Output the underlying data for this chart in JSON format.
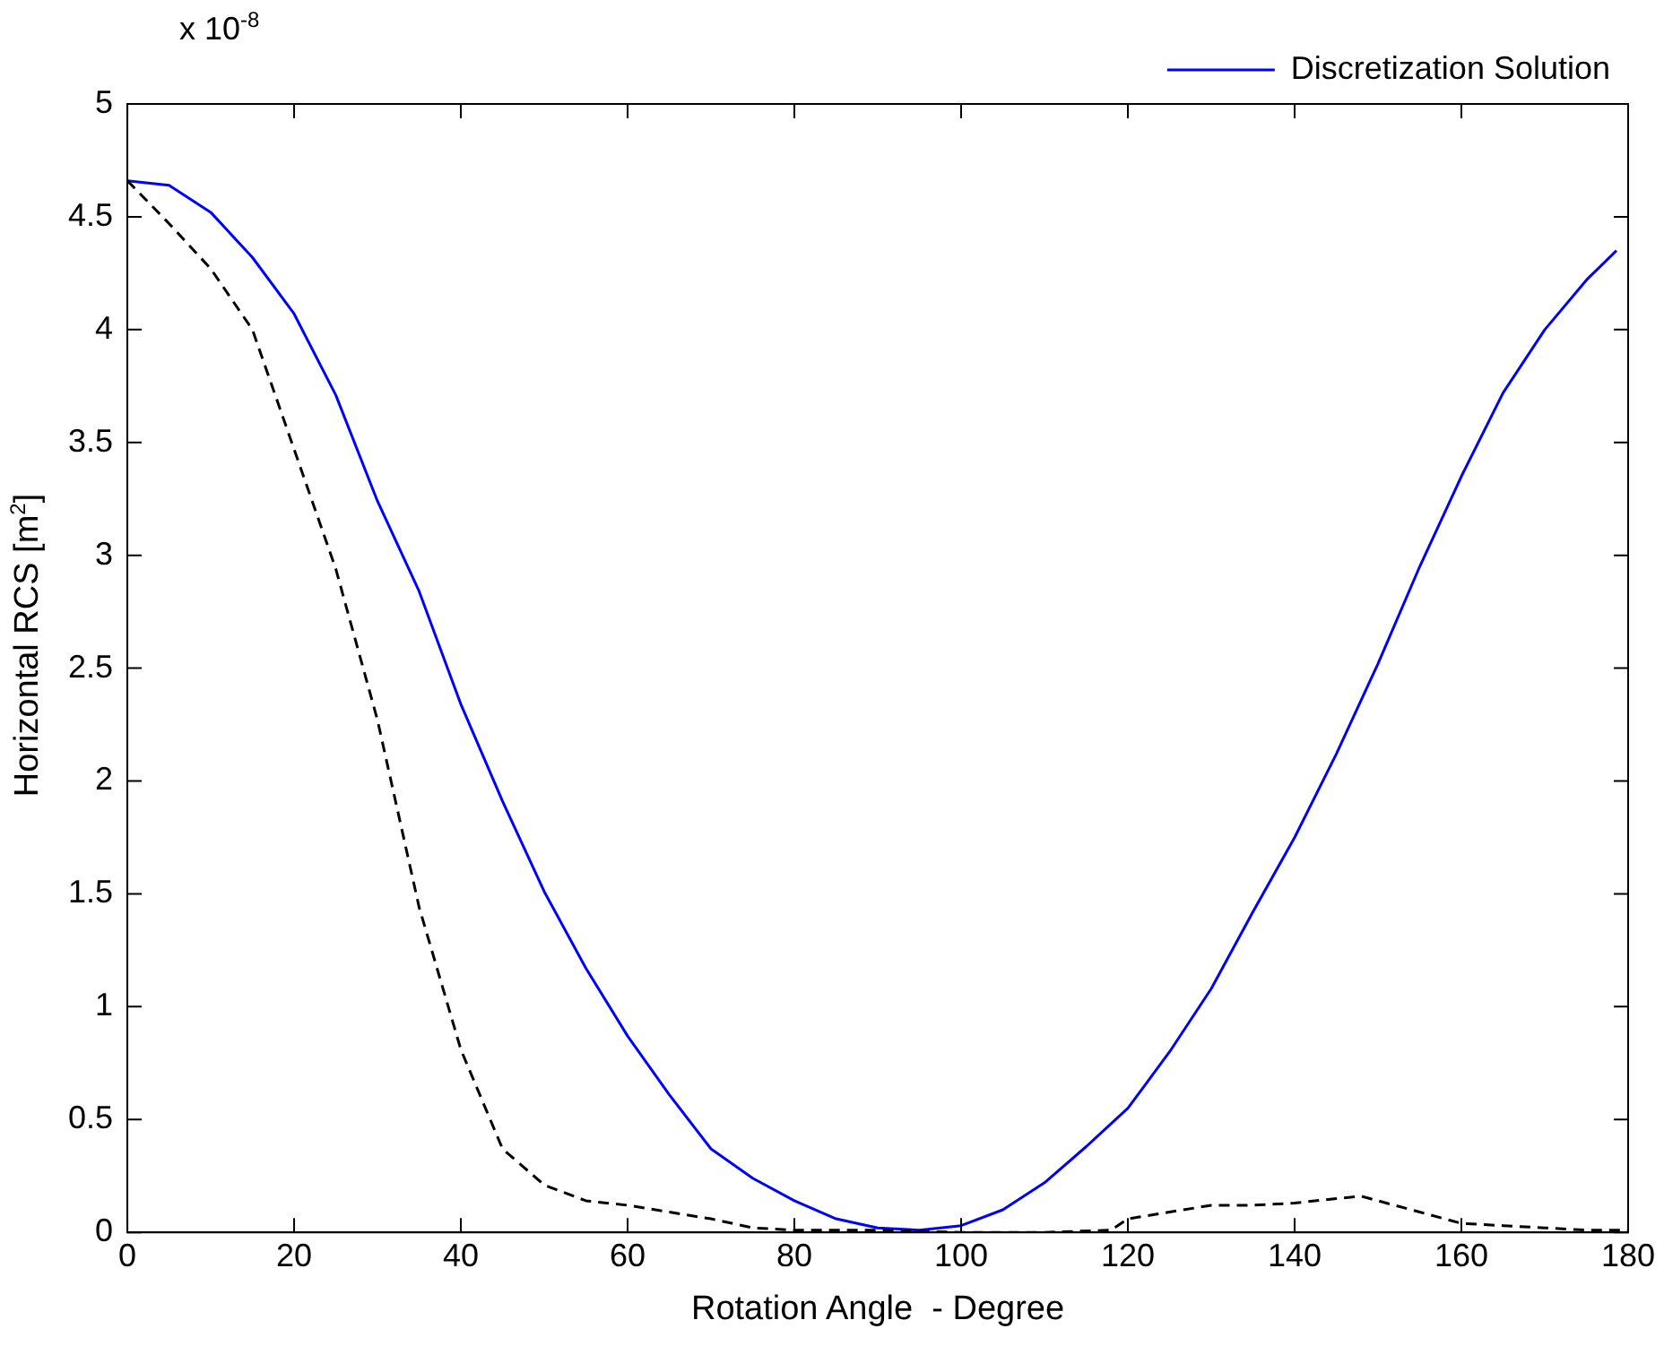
{
  "chart_data": {
    "type": "line",
    "xlabel": "Rotation Angle  - Degree",
    "ylabel": "Horizontal RCS [m$^{2}$]",
    "annotations": [
      "x 10$^{-8}$"
    ],
    "xlim": [
      0,
      180
    ],
    "xticks": [
      0,
      20,
      40,
      60,
      80,
      100,
      120,
      140,
      160,
      180
    ],
    "ylim": [
      0,
      5
    ],
    "yticks": [
      0,
      0.5,
      1,
      1.5,
      2,
      2.5,
      3,
      3.5,
      4,
      4.5,
      5
    ],
    "grid": false,
    "legend": "top right",
    "marker": "none",
    "series": [
      {
        "color": "#000000",
        "line_style": "dashed",
        "x": [
          0,
          5,
          10,
          15,
          20,
          25,
          30,
          35,
          40,
          45,
          50,
          55,
          60,
          65,
          70,
          75,
          80,
          90,
          100,
          110,
          118,
          120,
          125,
          130,
          135,
          140,
          145,
          148,
          150,
          155,
          160,
          165,
          170,
          175,
          180
        ],
        "values": [
          4.66,
          4.47,
          4.27,
          4.0,
          3.47,
          2.94,
          2.27,
          1.44,
          0.81,
          0.37,
          0.21,
          0.14,
          0.12,
          0.09,
          0.06,
          0.02,
          0.01,
          0.01,
          0.0,
          0.0,
          0.01,
          0.06,
          0.09,
          0.12,
          0.12,
          0.13,
          0.15,
          0.16,
          0.14,
          0.09,
          0.04,
          0.03,
          0.02,
          0.01,
          0.01
        ]
      },
      {
        "name": "Discretization Solution",
        "color": "#0000ff",
        "line_style": "solid",
        "x": [
          0,
          5,
          10,
          15,
          20,
          25,
          30,
          35,
          40,
          45,
          50,
          55,
          60,
          65,
          70,
          75,
          80,
          85,
          90,
          95,
          100,
          105,
          110,
          115,
          120,
          125,
          130,
          135,
          140,
          145,
          150,
          155,
          160,
          165,
          170,
          175,
          178.6
        ],
        "values": [
          4.66,
          4.64,
          4.52,
          4.32,
          4.07,
          3.71,
          3.24,
          2.84,
          2.34,
          1.91,
          1.51,
          1.17,
          0.87,
          0.61,
          0.37,
          0.24,
          0.14,
          0.06,
          0.02,
          0.01,
          0.03,
          0.1,
          0.22,
          0.38,
          0.55,
          0.8,
          1.08,
          1.42,
          1.75,
          2.12,
          2.52,
          2.95,
          3.35,
          3.72,
          4.0,
          4.22,
          4.35
        ]
      }
    ]
  }
}
